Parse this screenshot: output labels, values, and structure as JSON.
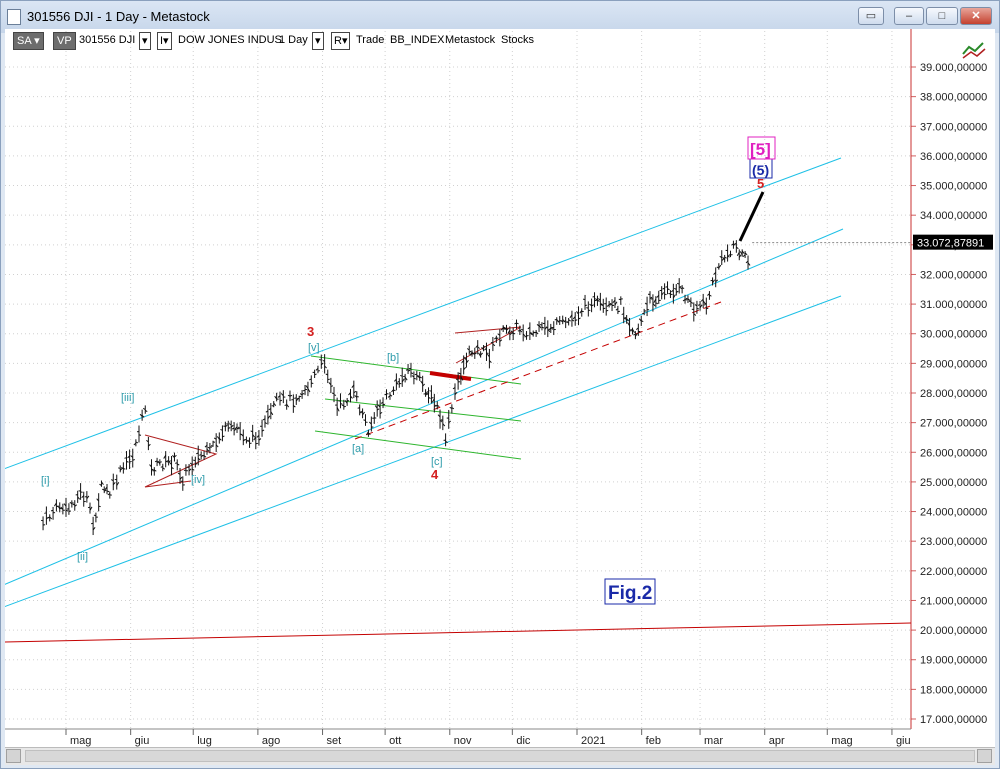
{
  "window": {
    "title": "301556 DJI - 1 Day - Metastock"
  },
  "toolbar": {
    "sa": "SA",
    "vp": "VP",
    "symbol": "301556 DJI",
    "security_name": "DOW JONES INDUS",
    "period": "1 Day",
    "r_label": "R",
    "trade": "Trade",
    "index": "BB_INDEX",
    "source": "Metastock",
    "stocks": "Stocks"
  },
  "chart_data": {
    "type": "line",
    "title": "",
    "xlabel": "",
    "ylabel": "",
    "x_ticks": [
      "mag",
      "giu",
      "lug",
      "ago",
      "set",
      "ott",
      "nov",
      "dic",
      "2021",
      "feb",
      "mar",
      "apr",
      "mag",
      "giu"
    ],
    "y_ticks": [
      "17.000,00000",
      "18.000,00000",
      "19.000,00000",
      "20.000,00000",
      "21.000,00000",
      "22.000,00000",
      "23.000,00000",
      "24.000,00000",
      "25.000,00000",
      "26.000,00000",
      "27.000,00000",
      "28.000,00000",
      "29.000,00000",
      "30.000,00000",
      "31.000,00000",
      "32.000,00000",
      "33.000,00000",
      "34.000,00000",
      "35.000,00000",
      "36.000,00000",
      "37.000,00000",
      "38.000,00000",
      "39.000,00000"
    ],
    "ylim": [
      16700,
      40000
    ],
    "last_price": "33.072,87891",
    "series": [
      {
        "values": [
          [
            "2020-04-20",
            23600
          ],
          [
            "2020-04-28",
            24200
          ],
          [
            "2020-05-01",
            24000
          ],
          [
            "2020-05-08",
            24600
          ],
          [
            "2020-05-11",
            24400
          ],
          [
            "2020-05-14",
            23500
          ],
          [
            "2020-05-18",
            24800
          ],
          [
            "2020-05-22",
            24600
          ],
          [
            "2020-05-27",
            25300
          ],
          [
            "2020-06-02",
            25900
          ],
          [
            "2020-06-08",
            27500
          ],
          [
            "2020-06-11",
            25400
          ],
          [
            "2020-06-15",
            25600
          ],
          [
            "2020-06-22",
            25700
          ],
          [
            "2020-06-26",
            25100
          ],
          [
            "2020-07-02",
            25800
          ],
          [
            "2020-07-09",
            26000
          ],
          [
            "2020-07-15",
            26700
          ],
          [
            "2020-07-22",
            26800
          ],
          [
            "2020-07-28",
            26400
          ],
          [
            "2020-08-03",
            26700
          ],
          [
            "2020-08-10",
            27700
          ],
          [
            "2020-08-18",
            27800
          ],
          [
            "2020-08-25",
            28200
          ],
          [
            "2020-09-02",
            29100
          ],
          [
            "2020-09-08",
            27500
          ],
          [
            "2020-09-16",
            28000
          ],
          [
            "2020-09-23",
            26800
          ],
          [
            "2020-09-30",
            27700
          ],
          [
            "2020-10-05",
            28100
          ],
          [
            "2020-10-12",
            28800
          ],
          [
            "2020-10-19",
            28300
          ],
          [
            "2020-10-26",
            27500
          ],
          [
            "2020-10-30",
            26500
          ],
          [
            "2020-11-05",
            28400
          ],
          [
            "2020-11-09",
            29200
          ],
          [
            "2020-11-13",
            29500
          ],
          [
            "2020-11-20",
            29300
          ],
          [
            "2020-11-25",
            30000
          ],
          [
            "2020-12-03",
            30200
          ],
          [
            "2020-12-11",
            30000
          ],
          [
            "2020-12-18",
            30200
          ],
          [
            "2020-12-28",
            30400
          ],
          [
            "2021-01-08",
            31100
          ],
          [
            "2021-01-15",
            30800
          ],
          [
            "2021-01-22",
            31000
          ],
          [
            "2021-01-29",
            29980
          ],
          [
            "2021-02-05",
            31100
          ],
          [
            "2021-02-12",
            31400
          ],
          [
            "2021-02-19",
            31500
          ],
          [
            "2021-02-26",
            30900
          ],
          [
            "2021-03-04",
            31000
          ],
          [
            "2021-03-10",
            32300
          ],
          [
            "2021-03-17",
            33000
          ],
          [
            "2021-03-24",
            32400
          ],
          [
            "2021-03-26",
            33073
          ]
        ]
      }
    ],
    "wave_labels": [
      {
        "text": "[i]",
        "color": "#2e9cab"
      },
      {
        "text": "[ii]",
        "color": "#2e9cab"
      },
      {
        "text": "[iii]",
        "color": "#2e9cab"
      },
      {
        "text": "[iv]",
        "color": "#2e9cab"
      },
      {
        "text": "[v]",
        "color": "#2e9cab"
      },
      {
        "text": "3",
        "color": "#d42020"
      },
      {
        "text": "[a]",
        "color": "#2e9cab"
      },
      {
        "text": "[b]",
        "color": "#2e9cab"
      },
      {
        "text": "[c]",
        "color": "#2e9cab"
      },
      {
        "text": "4",
        "color": "#d42020"
      },
      {
        "text": "5",
        "color": "#d42020"
      },
      {
        "text": "(5)",
        "color": "#1a2aa8"
      },
      {
        "text": "[5]",
        "color": "#e020c0"
      }
    ],
    "annotation": "Fig.2",
    "colors": {
      "channel": "#1ec0e6",
      "triangle_green": "#2db52d",
      "red_line": "#c40000",
      "label_teal": "#2e9cab",
      "fig_label": "#1a2aa8"
    }
  }
}
